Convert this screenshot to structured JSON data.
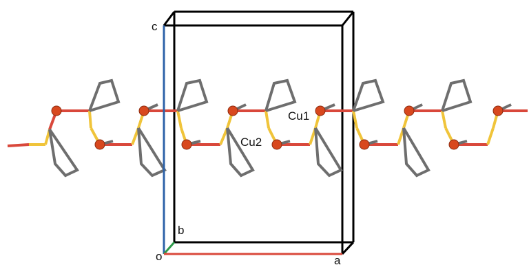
{
  "figure": {
    "labels": {
      "axis_c": "c",
      "axis_b": "b",
      "axis_a": "a",
      "origin": "o",
      "atom_cu1": "Cu1",
      "atom_cu2": "Cu2"
    },
    "colors": {
      "axis_a": "#d9483b",
      "axis_b": "#2e9b4b",
      "axis_c": "#2d62a8",
      "cell_edge": "#000000",
      "bond_s": "#f0c43a",
      "bond_c": "#6e6e6e",
      "bond_o": "#d9483b",
      "atom_cu": "#d8481e"
    }
  }
}
